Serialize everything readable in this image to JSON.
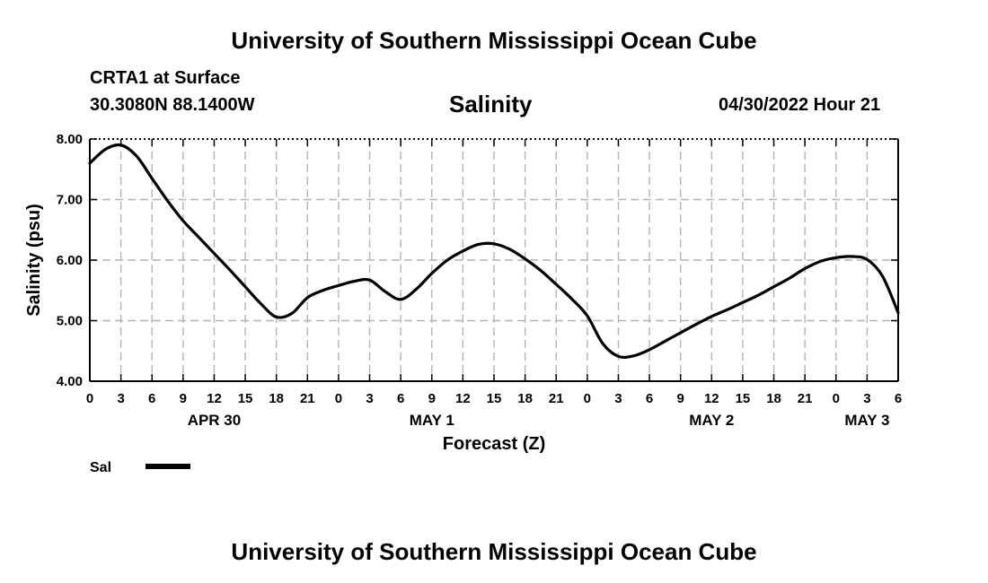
{
  "header": {
    "title": "University of Southern Mississippi Ocean Cube",
    "station": "CRTA1 at Surface",
    "coords": "30.3080N  88.1400W",
    "chart_title": "Salinity",
    "timestamp": "04/30/2022 Hour 21"
  },
  "footer": {
    "title": "University of Southern Mississippi Ocean Cube"
  },
  "colors": {
    "line": "#000000",
    "grid": "#b4b4b4",
    "background": "#ffffff"
  },
  "chart_data": {
    "type": "line",
    "title": "Salinity",
    "xlabel": "Forecast (Z)",
    "ylabel": "Salinity (psu)",
    "ylim": [
      4.0,
      8.0
    ],
    "xlim_hours": [
      0,
      78
    ],
    "grid": true,
    "x_tick_labels": [
      "0",
      "3",
      "6",
      "9",
      "12",
      "15",
      "18",
      "21",
      "0",
      "3",
      "6",
      "9",
      "12",
      "15",
      "18",
      "21",
      "0",
      "3",
      "6",
      "9",
      "12",
      "15",
      "18",
      "21",
      "0",
      "3",
      "6"
    ],
    "y_tick_labels": [
      "4.00",
      "5.00",
      "6.00",
      "7.00",
      "8.00"
    ],
    "y_ticks": [
      4.0,
      5.0,
      6.0,
      7.0,
      8.0
    ],
    "day_labels": [
      {
        "label": "APR 30",
        "hour": 12
      },
      {
        "label": "MAY 1",
        "hour": 33
      },
      {
        "label": "MAY 2",
        "hour": 60
      },
      {
        "label": "MAY 3",
        "hour": 75
      }
    ],
    "legend": {
      "label": "Sal",
      "position": "bottom-left"
    },
    "series": [
      {
        "name": "Sal",
        "x": [
          0,
          1.5,
          3,
          4.5,
          6,
          7.5,
          9,
          10.5,
          12,
          13.5,
          15,
          16.5,
          18,
          19.5,
          21,
          22.5,
          24,
          25.5,
          27,
          28.5,
          30,
          31.5,
          33,
          34.5,
          36,
          37.5,
          39,
          40.5,
          42,
          43.5,
          45,
          46.5,
          48,
          49.5,
          51,
          52.5,
          54,
          55.5,
          57,
          58.5,
          60,
          61.5,
          63,
          64.5,
          66,
          67.5,
          69,
          70.5,
          72,
          73.5,
          75,
          76.5,
          78
        ],
        "values": [
          7.6,
          7.83,
          7.9,
          7.72,
          7.35,
          6.98,
          6.65,
          6.38,
          6.11,
          5.84,
          5.56,
          5.28,
          5.06,
          5.12,
          5.38,
          5.5,
          5.58,
          5.65,
          5.67,
          5.48,
          5.35,
          5.52,
          5.78,
          6.0,
          6.15,
          6.26,
          6.27,
          6.18,
          6.02,
          5.83,
          5.6,
          5.36,
          5.08,
          4.62,
          4.41,
          4.42,
          4.52,
          4.66,
          4.8,
          4.94,
          5.07,
          5.18,
          5.3,
          5.42,
          5.56,
          5.7,
          5.86,
          5.98,
          6.04,
          6.06,
          6.01,
          5.73,
          5.13
        ]
      }
    ]
  }
}
